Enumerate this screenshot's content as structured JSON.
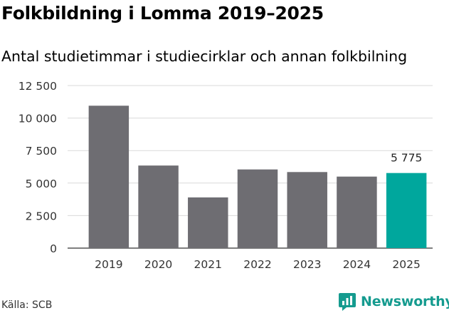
{
  "title": "Folkbildning i Lomma 2019–2025",
  "subtitle": "Antal studietimmar i studiecirklar och annan folkbilning",
  "source": "Källa: SCB",
  "brand": "Newsworthy",
  "colors": {
    "bar": "#6e6d72",
    "highlight": "#00a79d",
    "grid": "#d9d9d9",
    "brand": "#159b8f"
  },
  "chart_data": {
    "type": "bar",
    "categories": [
      "2019",
      "2020",
      "2021",
      "2022",
      "2023",
      "2024",
      "2025"
    ],
    "values": [
      10950,
      6350,
      3900,
      6050,
      5850,
      5500,
      5775
    ],
    "highlight_index": 6,
    "data_labels": [
      "",
      "",
      "",
      "",
      "",
      "",
      "5 775"
    ],
    "yticks": [
      0,
      2500,
      5000,
      7500,
      10000,
      12500
    ],
    "ytick_labels": [
      "0",
      "2 500",
      "5 000",
      "7 500",
      "10 000",
      "12 500"
    ],
    "ylim": [
      0,
      12500
    ],
    "grid": true,
    "legend": false
  }
}
